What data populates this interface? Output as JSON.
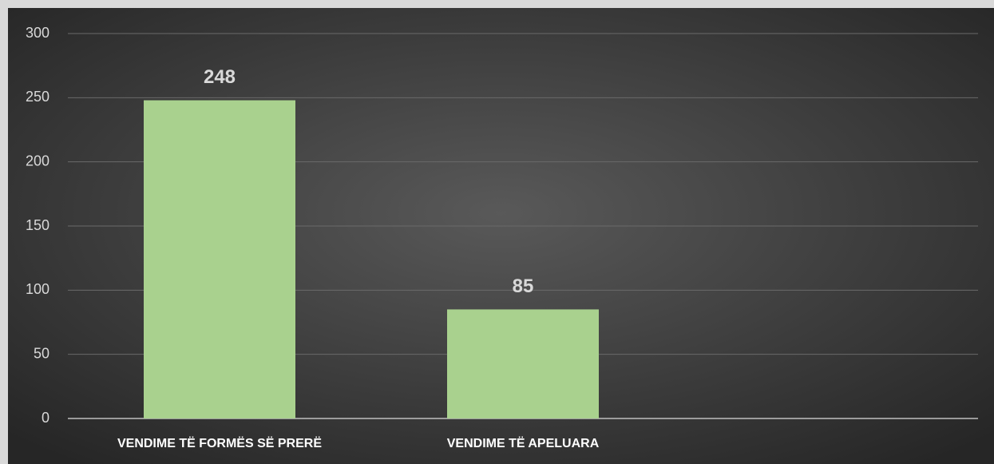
{
  "chart_data": {
    "type": "bar",
    "categories": [
      "VENDIME TË FORMËS SË PRERË",
      "VENDIME TË APELUARA",
      null
    ],
    "values": [
      248,
      85,
      null
    ],
    "color": "#a9d18e",
    "ylim": [
      0,
      300
    ],
    "yticks": [
      0,
      50,
      100,
      150,
      200,
      250,
      300
    ],
    "grid": true
  }
}
